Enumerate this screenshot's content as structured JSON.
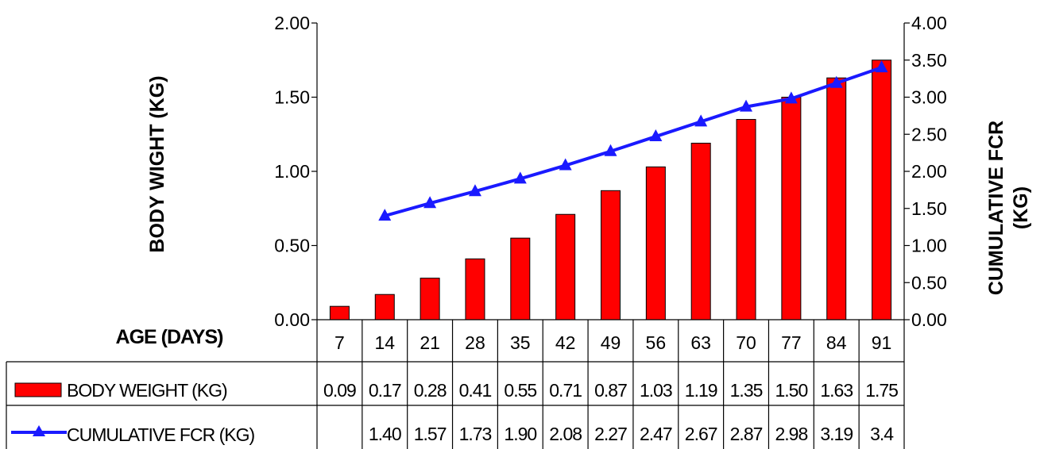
{
  "chart_data": {
    "type": "bar",
    "categories": [
      "7",
      "14",
      "21",
      "28",
      "35",
      "42",
      "49",
      "56",
      "63",
      "70",
      "77",
      "84",
      "91"
    ],
    "xlabel": "AGE (DAYS)",
    "ylabel": "BODY WIGHT (KG)",
    "y2label_line1": "CUMULATIVE FCR",
    "y2label_line2": "(KG)",
    "ylim": [
      0,
      2
    ],
    "y2lim": [
      0,
      4
    ],
    "yticks": [
      "0.00",
      "0.50",
      "1.00",
      "1.50",
      "2.00"
    ],
    "y2ticks": [
      "0.00",
      "0.50",
      "1.00",
      "1.50",
      "2.00",
      "2.50",
      "3.00",
      "3.50",
      "4.00"
    ],
    "series": [
      {
        "name": "BODY WEIGHT (KG)",
        "type": "bar",
        "axis": "left",
        "color": "#ff0000",
        "values": [
          0.09,
          0.17,
          0.28,
          0.41,
          0.55,
          0.71,
          0.87,
          1.03,
          1.19,
          1.35,
          1.5,
          1.63,
          1.75
        ],
        "labels": [
          "0.09",
          "0.17",
          "0.28",
          "0.41",
          "0.55",
          "0.71",
          "0.87",
          "1.03",
          "1.19",
          "1.35",
          "1.50",
          "1.63",
          "1.75"
        ]
      },
      {
        "name": "CUMULATIVE FCR (KG)",
        "type": "line",
        "axis": "right",
        "marker": "triangle",
        "color": "#1a1aff",
        "values": [
          null,
          1.4,
          1.57,
          1.73,
          1.9,
          2.08,
          2.27,
          2.47,
          2.67,
          2.87,
          2.98,
          3.19,
          3.4
        ],
        "labels": [
          "",
          "1.40",
          "1.57",
          "1.73",
          "1.90",
          "2.08",
          "2.27",
          "2.47",
          "2.67",
          "2.87",
          "2.98",
          "3.19",
          "3.4"
        ]
      }
    ],
    "grid": false,
    "legend_placement": "data-table"
  }
}
